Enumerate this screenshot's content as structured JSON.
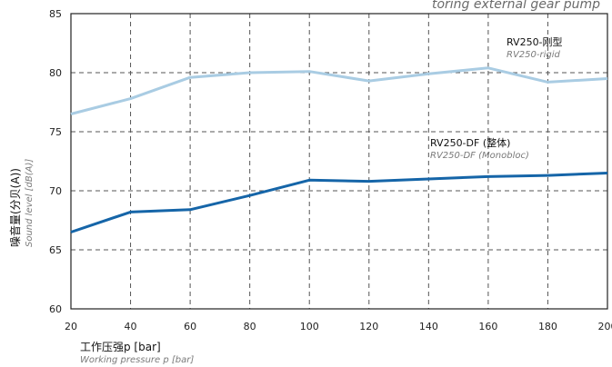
{
  "header_note": "toring external gear pump",
  "chart_data": {
    "type": "line",
    "x": [
      20,
      40,
      60,
      80,
      100,
      120,
      140,
      160,
      180,
      200
    ],
    "xlim": [
      20,
      200
    ],
    "ylim": [
      60,
      85
    ],
    "xticks": [
      "20",
      "40",
      "60",
      "80",
      "100",
      "120",
      "140",
      "160",
      "180",
      "200"
    ],
    "yticks": [
      "60",
      "65",
      "70",
      "75",
      "80",
      "85"
    ],
    "xlabel_cn": "工作压强p [bar]",
    "xlabel_en": "Working pressure p [bar]",
    "ylabel_cn": "噪音量(分贝(A))",
    "ylabel_en": "Sound level [dB(A)]",
    "grid": true,
    "series": [
      {
        "name": "RV250-刚型",
        "name_en": "RV250-rigid",
        "color": "#a9cce3",
        "values": [
          76.5,
          77.8,
          79.6,
          80.0,
          80.1,
          79.3,
          79.9,
          80.4,
          79.2,
          79.5
        ]
      },
      {
        "name": "RV250-DF (整体)",
        "name_en": "RV250-DF (Monobloc)",
        "color": "#1565a8",
        "values": [
          66.5,
          68.2,
          68.4,
          69.6,
          70.9,
          70.8,
          71.0,
          71.2,
          71.3,
          71.5
        ]
      }
    ]
  }
}
